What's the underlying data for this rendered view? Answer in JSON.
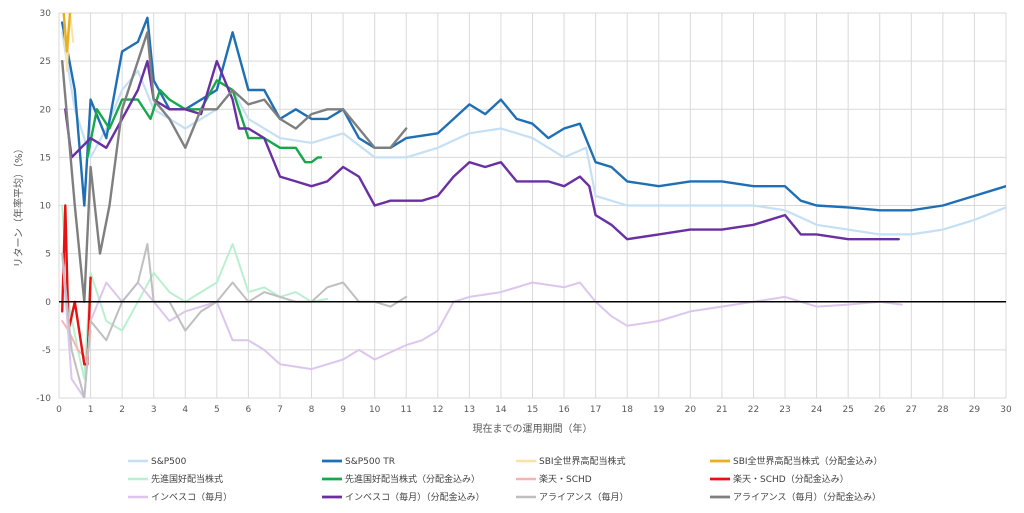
{
  "chart_data": {
    "type": "line",
    "xlabel": "現在までの運用期間（年）",
    "ylabel": "リターン（年率平均）（%）",
    "xlim": [
      0,
      30
    ],
    "ylim": [
      -10,
      30
    ],
    "x_ticks": [
      0,
      1,
      2,
      3,
      4,
      5,
      6,
      7,
      8,
      9,
      10,
      11,
      12,
      13,
      14,
      15,
      16,
      17,
      18,
      19,
      20,
      21,
      22,
      23,
      24,
      25,
      26,
      27,
      28,
      29,
      30
    ],
    "y_ticks": [
      -10,
      -5,
      0,
      5,
      10,
      15,
      20,
      25,
      30
    ],
    "grid": true,
    "legend_position": "bottom",
    "series": [
      {
        "name": "S&P500",
        "color": "#c5e0f5",
        "width": 2.2,
        "points": [
          [
            0.1,
            28
          ],
          [
            0.5,
            20
          ],
          [
            1,
            15
          ],
          [
            1.5,
            18
          ],
          [
            2,
            22
          ],
          [
            2.5,
            24
          ],
          [
            3,
            20
          ],
          [
            4,
            18
          ],
          [
            5,
            20
          ],
          [
            5.5,
            22
          ],
          [
            6,
            19
          ],
          [
            7,
            17
          ],
          [
            8,
            16.5
          ],
          [
            9,
            17.5
          ],
          [
            10,
            15
          ],
          [
            11,
            15
          ],
          [
            12,
            16
          ],
          [
            13,
            17.5
          ],
          [
            14,
            18
          ],
          [
            15,
            17
          ],
          [
            16,
            15
          ],
          [
            16.7,
            16
          ],
          [
            17,
            11
          ],
          [
            18,
            10
          ],
          [
            19,
            10
          ],
          [
            20,
            10
          ],
          [
            21,
            10
          ],
          [
            22,
            10
          ],
          [
            23,
            9.5
          ],
          [
            24,
            8
          ],
          [
            25,
            7.5
          ],
          [
            26,
            7
          ],
          [
            27,
            7
          ],
          [
            28,
            7.5
          ],
          [
            29,
            8.5
          ],
          [
            30,
            9.8
          ]
        ]
      },
      {
        "name": "S&P500 TR",
        "color": "#1f6fb5",
        "width": 2.4,
        "points": [
          [
            0.1,
            29
          ],
          [
            0.5,
            22
          ],
          [
            0.8,
            10
          ],
          [
            1,
            21
          ],
          [
            1.5,
            17
          ],
          [
            2,
            26
          ],
          [
            2.5,
            27
          ],
          [
            2.8,
            29.5
          ],
          [
            3,
            23
          ],
          [
            3.5,
            20
          ],
          [
            4,
            20
          ],
          [
            5,
            22
          ],
          [
            5.5,
            28
          ],
          [
            6,
            22
          ],
          [
            6.5,
            22
          ],
          [
            7,
            19
          ],
          [
            7.5,
            20
          ],
          [
            8,
            19
          ],
          [
            8.5,
            19
          ],
          [
            9,
            20
          ],
          [
            9.5,
            17
          ],
          [
            10,
            16
          ],
          [
            10.5,
            16
          ],
          [
            11,
            17
          ],
          [
            12,
            17.5
          ],
          [
            12.5,
            19
          ],
          [
            13,
            20.5
          ],
          [
            13.5,
            19.5
          ],
          [
            14,
            21
          ],
          [
            14.5,
            19
          ],
          [
            15,
            18.5
          ],
          [
            15.5,
            17
          ],
          [
            16,
            18
          ],
          [
            16.5,
            18.5
          ],
          [
            17,
            14.5
          ],
          [
            17.5,
            14
          ],
          [
            18,
            12.5
          ],
          [
            19,
            12
          ],
          [
            20,
            12.5
          ],
          [
            21,
            12.5
          ],
          [
            22,
            12
          ],
          [
            23,
            12
          ],
          [
            23.5,
            10.5
          ],
          [
            24,
            10
          ],
          [
            25,
            9.8
          ],
          [
            26,
            9.5
          ],
          [
            27,
            9.5
          ],
          [
            28,
            10
          ],
          [
            29,
            11
          ],
          [
            30,
            12
          ]
        ]
      },
      {
        "name": "SBI全世界高配当株式",
        "color": "#fde2a6",
        "width": 2,
        "points": [
          [
            0.15,
            30
          ],
          [
            0.25,
            24
          ],
          [
            0.35,
            30
          ],
          [
            0.45,
            27
          ]
        ]
      },
      {
        "name": "SBI全世界高配当株式（分配金込み）",
        "color": "#e8b020",
        "width": 2.4,
        "points": [
          [
            0.15,
            30
          ],
          [
            0.25,
            26
          ],
          [
            0.35,
            30
          ]
        ]
      },
      {
        "name": "先進国好配当株式",
        "color": "#b9f0cf",
        "width": 2,
        "points": [
          [
            0.1,
            10
          ],
          [
            0.3,
            0
          ],
          [
            0.6,
            -5
          ],
          [
            0.8,
            -8
          ],
          [
            1,
            3
          ],
          [
            1.5,
            -2
          ],
          [
            2,
            -3
          ],
          [
            2.5,
            0
          ],
          [
            3,
            3
          ],
          [
            3.5,
            1
          ],
          [
            4,
            0
          ],
          [
            4.5,
            1
          ],
          [
            5,
            2
          ],
          [
            5.5,
            6
          ],
          [
            6,
            1
          ],
          [
            6.5,
            1.5
          ],
          [
            7,
            0.5
          ],
          [
            7.5,
            1
          ],
          [
            8,
            0
          ],
          [
            8.5,
            0.3
          ]
        ]
      },
      {
        "name": "先進国好配当株式（分配金込み）",
        "color": "#16a84a",
        "width": 2.4,
        "points": [
          [
            0.9,
            15
          ],
          [
            1.2,
            20
          ],
          [
            1.6,
            18
          ],
          [
            2,
            21
          ],
          [
            2.5,
            21
          ],
          [
            2.9,
            19
          ],
          [
            3.2,
            22
          ],
          [
            3.5,
            21
          ],
          [
            4,
            20
          ],
          [
            4.5,
            20
          ],
          [
            5,
            23
          ],
          [
            5.5,
            22
          ],
          [
            6,
            17
          ],
          [
            6.5,
            17
          ],
          [
            7,
            16
          ],
          [
            7.5,
            16
          ],
          [
            7.8,
            14.5
          ],
          [
            8,
            14.5
          ],
          [
            8.2,
            15
          ],
          [
            8.3,
            15
          ]
        ]
      },
      {
        "name": "楽天・SCHD",
        "color": "#f7b4b4",
        "width": 2,
        "points": [
          [
            0.1,
            -2
          ],
          [
            0.3,
            -3
          ],
          [
            0.6,
            -5
          ],
          [
            0.9,
            -6
          ],
          [
            1,
            -3
          ]
        ]
      },
      {
        "name": "楽天・SCHD（分配金込み）",
        "color": "#e81010",
        "width": 2.4,
        "points": [
          [
            0.1,
            -1
          ],
          [
            0.2,
            10
          ],
          [
            0.3,
            -3
          ],
          [
            0.5,
            0
          ],
          [
            0.8,
            -6.5
          ],
          [
            0.9,
            -6.5
          ],
          [
            1,
            2.5
          ]
        ]
      },
      {
        "name": "インベスコ（毎月）",
        "color": "#dcc6ee",
        "width": 2,
        "points": [
          [
            0.1,
            5
          ],
          [
            0.4,
            -8
          ],
          [
            0.8,
            -10
          ],
          [
            1,
            -2
          ],
          [
            1.5,
            2
          ],
          [
            2,
            0
          ],
          [
            2.5,
            2
          ],
          [
            3,
            0
          ],
          [
            3.5,
            -2
          ],
          [
            4,
            -1
          ],
          [
            5,
            0
          ],
          [
            5.5,
            -4
          ],
          [
            6,
            -4
          ],
          [
            6.5,
            -5
          ],
          [
            7,
            -6.5
          ],
          [
            8,
            -7
          ],
          [
            9,
            -6
          ],
          [
            9.5,
            -5
          ],
          [
            10,
            -6
          ],
          [
            11,
            -4.5
          ],
          [
            11.5,
            -4
          ],
          [
            12,
            -3
          ],
          [
            12.5,
            0
          ],
          [
            13,
            0.5
          ],
          [
            14,
            1
          ],
          [
            15,
            2
          ],
          [
            16,
            1.5
          ],
          [
            16.5,
            2
          ],
          [
            17,
            0
          ],
          [
            17.5,
            -1.5
          ],
          [
            18,
            -2.5
          ],
          [
            19,
            -2
          ],
          [
            20,
            -1
          ],
          [
            21,
            -0.5
          ],
          [
            22,
            0
          ],
          [
            23,
            0.5
          ],
          [
            24,
            -0.5
          ],
          [
            25,
            -0.3
          ],
          [
            26,
            0
          ],
          [
            26.7,
            -0.3
          ]
        ]
      },
      {
        "name": "インベスコ（毎月）（分配金込み）",
        "color": "#6a2fa2",
        "width": 2.4,
        "points": [
          [
            0.2,
            20
          ],
          [
            0.4,
            15
          ],
          [
            1,
            17
          ],
          [
            1.5,
            16
          ],
          [
            2,
            19
          ],
          [
            2.5,
            22
          ],
          [
            2.8,
            25
          ],
          [
            3,
            21
          ],
          [
            3.5,
            20
          ],
          [
            4,
            20
          ],
          [
            4.5,
            19.5
          ],
          [
            5,
            25
          ],
          [
            5.5,
            21
          ],
          [
            5.7,
            18
          ],
          [
            6,
            18
          ],
          [
            6.5,
            17
          ],
          [
            7,
            13
          ],
          [
            7.5,
            12.5
          ],
          [
            8,
            12
          ],
          [
            8.5,
            12.5
          ],
          [
            9,
            14
          ],
          [
            9.5,
            13
          ],
          [
            10,
            10
          ],
          [
            10.5,
            10.5
          ],
          [
            11,
            10.5
          ],
          [
            11.5,
            10.5
          ],
          [
            12,
            11
          ],
          [
            12.5,
            13
          ],
          [
            13,
            14.5
          ],
          [
            13.5,
            14
          ],
          [
            14,
            14.5
          ],
          [
            14.5,
            12.5
          ],
          [
            15,
            12.5
          ],
          [
            15.5,
            12.5
          ],
          [
            16,
            12
          ],
          [
            16.5,
            13
          ],
          [
            16.8,
            12
          ],
          [
            17,
            9
          ],
          [
            17.5,
            8
          ],
          [
            18,
            6.5
          ],
          [
            19,
            7
          ],
          [
            20,
            7.5
          ],
          [
            21,
            7.5
          ],
          [
            22,
            8
          ],
          [
            23,
            9
          ],
          [
            23.5,
            7
          ],
          [
            24,
            7
          ],
          [
            25,
            6.5
          ],
          [
            26,
            6.5
          ],
          [
            26.6,
            6.5
          ]
        ]
      },
      {
        "name": "アライアンス（毎月）",
        "color": "#bfbfbf",
        "width": 2,
        "points": [
          [
            0.1,
            5
          ],
          [
            0.4,
            -5
          ],
          [
            0.8,
            -10
          ],
          [
            1,
            -2
          ],
          [
            1.5,
            -4
          ],
          [
            2,
            0
          ],
          [
            2.5,
            2
          ],
          [
            2.8,
            6
          ],
          [
            3,
            0
          ],
          [
            3.5,
            0
          ],
          [
            4,
            -3
          ],
          [
            4.5,
            -1
          ],
          [
            5,
            0
          ],
          [
            5.5,
            2
          ],
          [
            6,
            0
          ],
          [
            6.5,
            1
          ],
          [
            7,
            0.5
          ],
          [
            7.5,
            0
          ],
          [
            8,
            0
          ],
          [
            8.5,
            1.5
          ],
          [
            9,
            2
          ],
          [
            9.5,
            0
          ],
          [
            10,
            0
          ],
          [
            10.5,
            -0.5
          ],
          [
            11,
            0.5
          ]
        ]
      },
      {
        "name": "アライアンス（毎月）（分配金込み）",
        "color": "#7f7f7f",
        "width": 2.4,
        "points": [
          [
            0.1,
            25
          ],
          [
            0.5,
            10
          ],
          [
            0.8,
            0
          ],
          [
            1,
            14
          ],
          [
            1.3,
            5
          ],
          [
            1.6,
            10
          ],
          [
            2,
            20
          ],
          [
            2.5,
            25
          ],
          [
            2.8,
            28
          ],
          [
            3,
            21
          ],
          [
            3.5,
            19
          ],
          [
            4,
            16
          ],
          [
            4.5,
            20
          ],
          [
            5,
            20
          ],
          [
            5.5,
            22
          ],
          [
            6,
            20.5
          ],
          [
            6.5,
            21
          ],
          [
            7,
            19
          ],
          [
            7.5,
            18
          ],
          [
            8,
            19.5
          ],
          [
            8.5,
            20
          ],
          [
            9,
            20
          ],
          [
            9.5,
            18
          ],
          [
            10,
            16
          ],
          [
            10.5,
            16
          ],
          [
            11,
            18
          ]
        ]
      }
    ]
  }
}
